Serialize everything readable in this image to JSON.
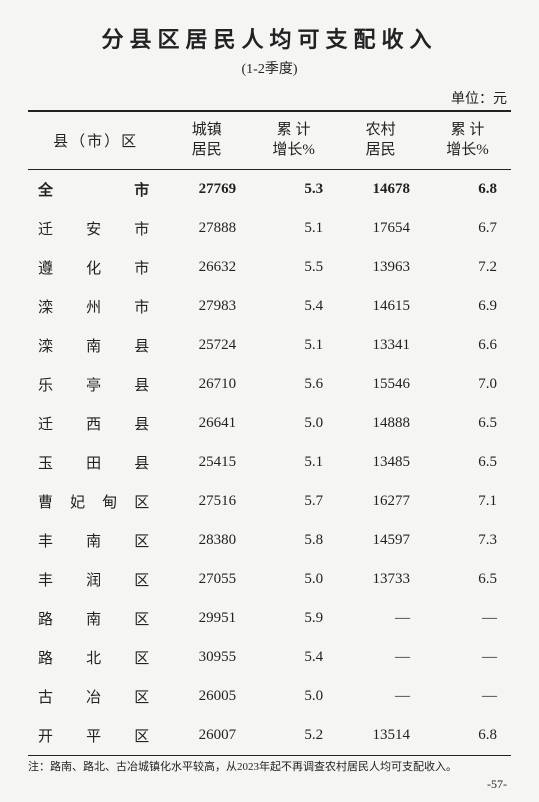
{
  "title": "分县区居民人均可支配收入",
  "subtitle": "(1-2季度)",
  "unit": "单位：元",
  "columns": {
    "region": "县（市）区",
    "urban": "城镇\n居民",
    "urban_growth": "累 计\n增长%",
    "rural": "农村\n居民",
    "rural_growth": "累 计\n增长%"
  },
  "rows": [
    {
      "region_chars": [
        "全",
        "",
        "市"
      ],
      "urban": "27769",
      "urban_growth": "5.3",
      "rural": "14678",
      "rural_growth": "6.8",
      "bold": true
    },
    {
      "region_chars": [
        "迁",
        "安",
        "市"
      ],
      "urban": "27888",
      "urban_growth": "5.1",
      "rural": "17654",
      "rural_growth": "6.7"
    },
    {
      "region_chars": [
        "遵",
        "化",
        "市"
      ],
      "urban": "26632",
      "urban_growth": "5.5",
      "rural": "13963",
      "rural_growth": "7.2"
    },
    {
      "region_chars": [
        "滦",
        "州",
        "市"
      ],
      "urban": "27983",
      "urban_growth": "5.4",
      "rural": "14615",
      "rural_growth": "6.9"
    },
    {
      "region_chars": [
        "滦",
        "南",
        "县"
      ],
      "urban": "25724",
      "urban_growth": "5.1",
      "rural": "13341",
      "rural_growth": "6.6"
    },
    {
      "region_chars": [
        "乐",
        "亭",
        "县"
      ],
      "urban": "26710",
      "urban_growth": "5.6",
      "rural": "15546",
      "rural_growth": "7.0"
    },
    {
      "region_chars": [
        "迁",
        "西",
        "县"
      ],
      "urban": "26641",
      "urban_growth": "5.0",
      "rural": "14888",
      "rural_growth": "6.5"
    },
    {
      "region_chars": [
        "玉",
        "田",
        "县"
      ],
      "urban": "25415",
      "urban_growth": "5.1",
      "rural": "13485",
      "rural_growth": "6.5"
    },
    {
      "region_chars": [
        "曹",
        "妃",
        "甸",
        "区"
      ],
      "urban": "27516",
      "urban_growth": "5.7",
      "rural": "16277",
      "rural_growth": "7.1"
    },
    {
      "region_chars": [
        "丰",
        "南",
        "区"
      ],
      "urban": "28380",
      "urban_growth": "5.8",
      "rural": "14597",
      "rural_growth": "7.3"
    },
    {
      "region_chars": [
        "丰",
        "润",
        "区"
      ],
      "urban": "27055",
      "urban_growth": "5.0",
      "rural": "13733",
      "rural_growth": "6.5"
    },
    {
      "region_chars": [
        "路",
        "南",
        "区"
      ],
      "urban": "29951",
      "urban_growth": "5.9",
      "rural": "—",
      "rural_growth": "—"
    },
    {
      "region_chars": [
        "路",
        "北",
        "区"
      ],
      "urban": "30955",
      "urban_growth": "5.4",
      "rural": "—",
      "rural_growth": "—"
    },
    {
      "region_chars": [
        "古",
        "冶",
        "区"
      ],
      "urban": "26005",
      "urban_growth": "5.0",
      "rural": "—",
      "rural_growth": "—"
    },
    {
      "region_chars": [
        "开",
        "平",
        "区"
      ],
      "urban": "26007",
      "urban_growth": "5.2",
      "rural": "13514",
      "rural_growth": "6.8"
    }
  ],
  "footnote": "注：路南、路北、古冶城镇化水平较高，从2023年起不再调查农村居民人均可支配收入。",
  "pagenum": "-57-"
}
